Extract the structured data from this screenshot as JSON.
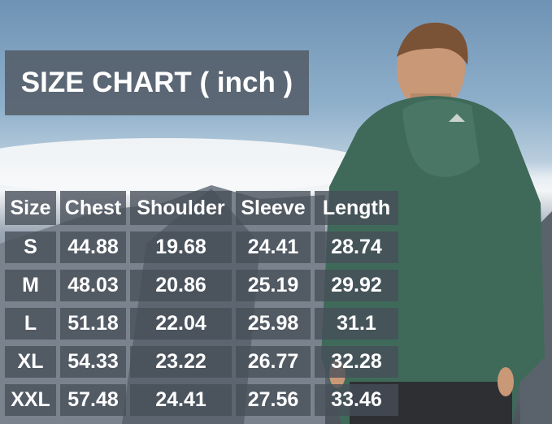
{
  "title": "SIZE CHART ( inch )",
  "table": {
    "headers": [
      "Size",
      "Chest",
      "Shoulder",
      "Sleeve",
      "Length"
    ],
    "rows": [
      [
        "S",
        "44.88",
        "19.68",
        "24.41",
        "28.74"
      ],
      [
        "M",
        "48.03",
        "20.86",
        "25.19",
        "29.92"
      ],
      [
        "L",
        "51.18",
        "22.04",
        "25.98",
        "31.1"
      ],
      [
        "XL",
        "54.33",
        "23.22",
        "26.77",
        "32.28"
      ],
      [
        "XXL",
        "57.48",
        "24.41",
        "27.56",
        "33.46"
      ]
    ]
  },
  "colors": {
    "jacket": "#3f6a5a",
    "cell_bg": "#464e58",
    "text": "#ffffff"
  }
}
